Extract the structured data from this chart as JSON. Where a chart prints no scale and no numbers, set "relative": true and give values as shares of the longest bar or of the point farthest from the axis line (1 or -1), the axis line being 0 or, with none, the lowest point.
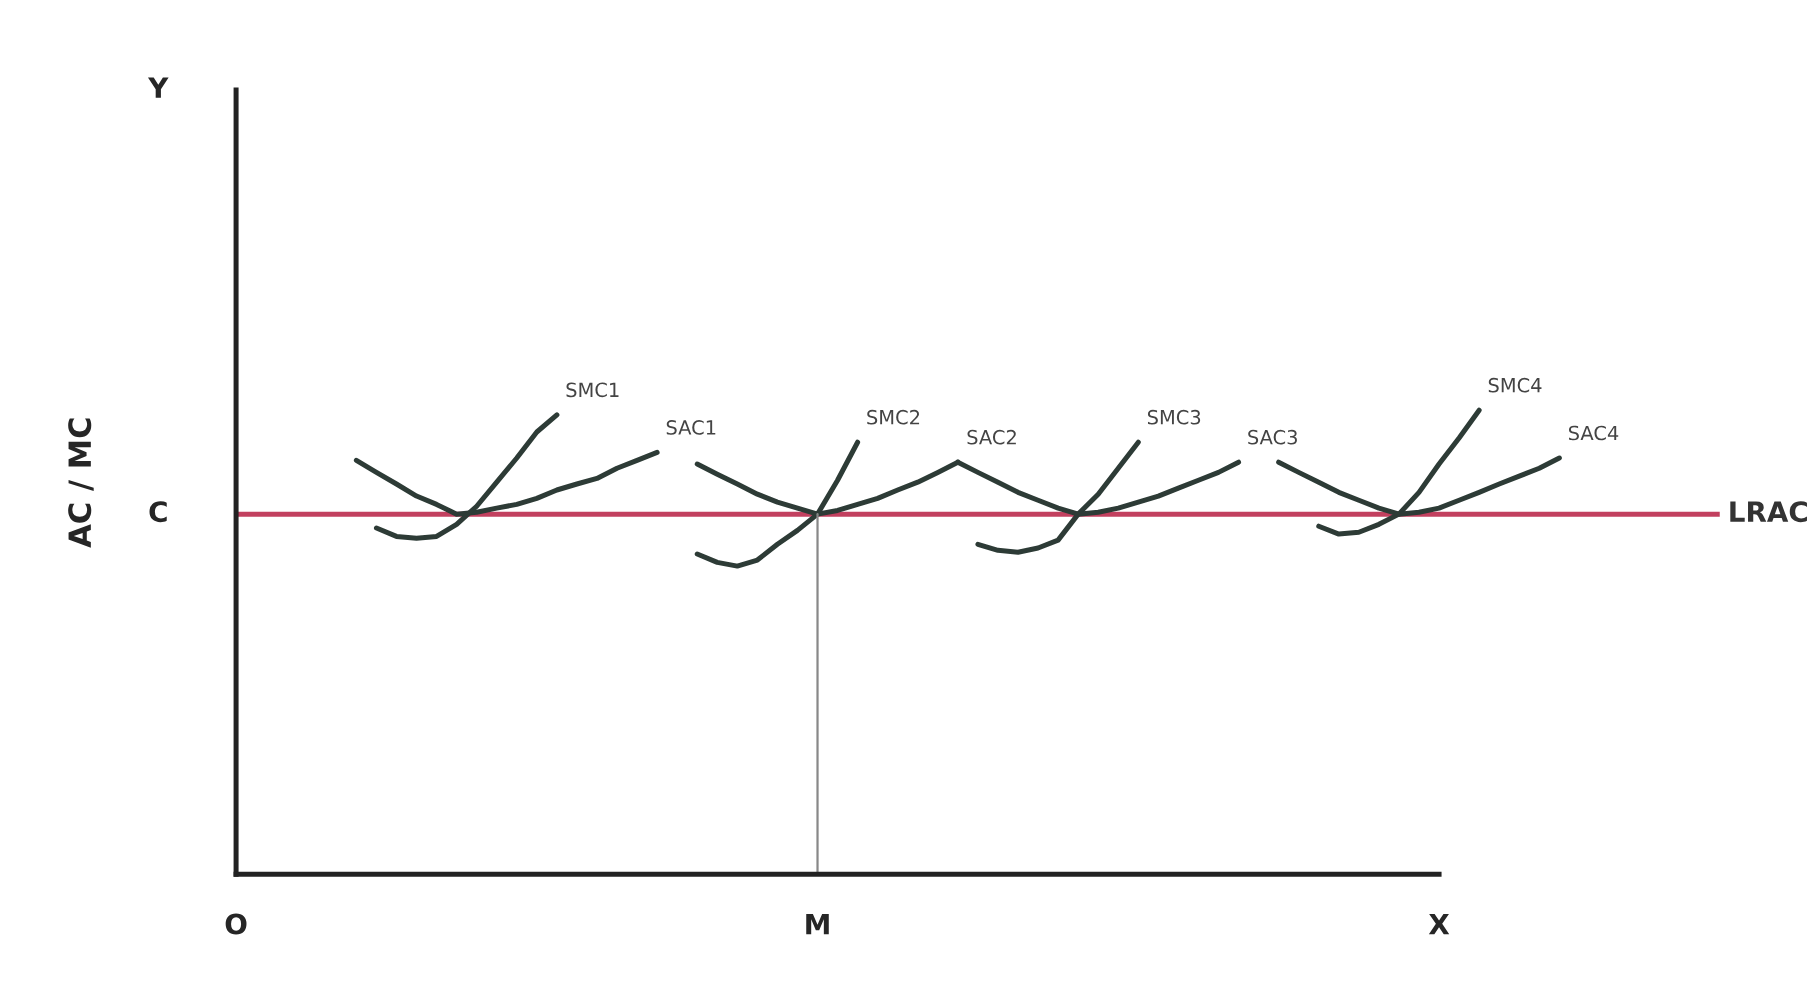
{
  "chart_data": {
    "type": "line",
    "relative": true,
    "ylabel": "AC / MC",
    "tick_labels": "x",
    "annotations": [
      "Y",
      "C"
    ],
    "categories": [
      "O",
      null,
      null,
      null,
      null,
      null,
      null,
      null,
      null,
      null,
      null,
      null,
      null,
      null,
      null,
      null,
      null,
      null,
      null,
      null,
      null,
      null,
      null,
      null,
      null,
      null,
      null,
      null,
      null,
      "M",
      null,
      null,
      null,
      null,
      null,
      null,
      null,
      null,
      null,
      null,
      null,
      null,
      null,
      null,
      null,
      null,
      null,
      null,
      null,
      null,
      null,
      null,
      null,
      null,
      null,
      null,
      null,
      null,
      null,
      null,
      "X",
      null,
      null,
      null,
      null,
      null,
      null,
      null,
      null,
      null,
      null,
      null,
      null,
      null,
      null
    ],
    "ref_lines": [
      {
        "axis": "x",
        "value": "M",
        "color": "#888888"
      }
    ],
    "series": [
      {
        "name": "LRAC",
        "color": "#c2405f",
        "values": [
          0.776,
          0.776,
          0.776,
          0.776,
          0.776,
          0.776,
          0.776,
          0.776,
          0.776,
          0.776,
          0.776,
          0.776,
          0.776,
          0.776,
          0.776,
          0.776,
          0.776,
          0.776,
          0.776,
          0.776,
          0.776,
          0.776,
          0.776,
          0.776,
          0.776,
          0.776,
          0.776,
          0.776,
          0.776,
          0.776,
          0.776,
          0.776,
          0.776,
          0.776,
          0.776,
          0.776,
          0.776,
          0.776,
          0.776,
          0.776,
          0.776,
          0.776,
          0.776,
          0.776,
          0.776,
          0.776,
          0.776,
          0.776,
          0.776,
          0.776,
          0.776,
          0.776,
          0.776,
          0.776,
          0.776,
          0.776,
          0.776,
          0.776,
          0.776,
          0.776,
          0.776,
          0.776,
          0.776,
          0.776,
          0.776,
          0.776,
          0.776,
          0.776,
          0.776,
          0.776,
          0.776,
          0.776,
          0.776,
          0.776,
          0.776
        ]
      },
      {
        "name": "SAC1",
        "color": "#2d3b36",
        "values": [
          null,
          null,
          null,
          null,
          null,
          null,
          0.892,
          0.866,
          0.841,
          0.815,
          0.797,
          0.776,
          0.78,
          0.789,
          0.797,
          0.81,
          0.828,
          0.841,
          0.853,
          0.875,
          0.892,
          0.909,
          null,
          null,
          null,
          null,
          null,
          null,
          null,
          null,
          null,
          null,
          null,
          null,
          null,
          null,
          null,
          null,
          null,
          null,
          null,
          null,
          null,
          null,
          null,
          null,
          null,
          null,
          null,
          null,
          null,
          null,
          null,
          null,
          null,
          null,
          null,
          null,
          null,
          null,
          null,
          null,
          null,
          null,
          null,
          null,
          null,
          null,
          null,
          null,
          null,
          null,
          null,
          null,
          null
        ]
      },
      {
        "name": "SMC1",
        "color": "#2d3b36",
        "values": [
          null,
          null,
          null,
          null,
          null,
          null,
          null,
          0.746,
          0.728,
          0.724,
          0.728,
          0.754,
          0.793,
          0.845,
          0.897,
          0.953,
          0.99,
          null,
          null,
          null,
          null,
          null,
          null,
          null,
          null,
          null,
          null,
          null,
          null,
          null,
          null,
          null,
          null,
          null,
          null,
          null,
          null,
          null,
          null,
          null,
          null,
          null,
          null,
          null,
          null,
          null,
          null,
          null,
          null,
          null,
          null,
          null,
          null,
          null,
          null,
          null,
          null,
          null,
          null,
          null,
          null,
          null,
          null,
          null,
          null,
          null,
          null,
          null,
          null,
          null,
          null,
          null,
          null,
          null,
          null
        ]
      },
      {
        "name": "SMC2",
        "color": "#2d3b36",
        "values": [
          null,
          null,
          null,
          null,
          null,
          null,
          null,
          null,
          null,
          null,
          null,
          null,
          null,
          null,
          null,
          null,
          null,
          null,
          null,
          null,
          null,
          null,
          null,
          0.69,
          0.672,
          0.664,
          0.677,
          0.711,
          0.741,
          0.776,
          0.849,
          0.931,
          null,
          null,
          null,
          null,
          null,
          null,
          null,
          null,
          null,
          null,
          null,
          null,
          null,
          null,
          null,
          null,
          null,
          null,
          null,
          null,
          null,
          null,
          null,
          null,
          null,
          null,
          null,
          null,
          null,
          null,
          null,
          null,
          null,
          null,
          null,
          null,
          null,
          null,
          null,
          null,
          null,
          null,
          null
        ]
      },
      {
        "name": "SAC2",
        "color": "#2d3b36",
        "values": [
          null,
          null,
          null,
          null,
          null,
          null,
          null,
          null,
          null,
          null,
          null,
          null,
          null,
          null,
          null,
          null,
          null,
          null,
          null,
          null,
          null,
          null,
          null,
          0.884,
          0.862,
          0.841,
          0.819,
          0.802,
          0.789,
          0.776,
          0.784,
          0.797,
          0.81,
          0.828,
          0.845,
          0.866,
          0.888,
          null,
          null,
          null,
          null,
          null,
          null,
          null,
          null,
          null,
          null,
          null,
          null,
          null,
          null,
          null,
          null,
          null,
          null,
          null,
          null,
          null,
          null,
          null,
          null,
          null,
          null,
          null,
          null,
          null,
          null,
          null,
          null,
          null,
          null,
          null,
          null,
          null,
          null
        ]
      },
      {
        "name": "SMC3",
        "color": "#2d3b36",
        "values": [
          null,
          null,
          null,
          null,
          null,
          null,
          null,
          null,
          null,
          null,
          null,
          null,
          null,
          null,
          null,
          null,
          null,
          null,
          null,
          null,
          null,
          null,
          null,
          null,
          null,
          null,
          null,
          null,
          null,
          null,
          null,
          null,
          null,
          null,
          null,
          null,
          null,
          0.711,
          0.698,
          0.694,
          0.703,
          0.72,
          0.776,
          0.819,
          0.875,
          0.931,
          null,
          null,
          null,
          null,
          null,
          null,
          null,
          null,
          null,
          null,
          null,
          null,
          null,
          null,
          null,
          null,
          null,
          null,
          null,
          null,
          null,
          null,
          null,
          null,
          null,
          null,
          null,
          null,
          null
        ]
      },
      {
        "name": "SAC3",
        "color": "#2d3b36",
        "values": [
          null,
          null,
          null,
          null,
          null,
          null,
          null,
          null,
          null,
          null,
          null,
          null,
          null,
          null,
          null,
          null,
          null,
          null,
          null,
          null,
          null,
          null,
          null,
          null,
          null,
          null,
          null,
          null,
          null,
          null,
          null,
          null,
          null,
          null,
          null,
          null,
          0.888,
          0.866,
          0.845,
          0.823,
          0.806,
          0.789,
          0.776,
          0.78,
          0.789,
          0.802,
          0.815,
          0.832,
          0.849,
          0.866,
          0.888,
          null,
          null,
          null,
          null,
          null,
          null,
          null,
          null,
          null,
          null,
          null,
          null,
          null,
          null,
          null,
          null,
          null,
          null,
          null,
          null,
          null,
          null,
          null,
          null
        ]
      },
      {
        "name": "SMC4",
        "color": "#2d3b36",
        "values": [
          null,
          null,
          null,
          null,
          null,
          null,
          null,
          null,
          null,
          null,
          null,
          null,
          null,
          null,
          null,
          null,
          null,
          null,
          null,
          null,
          null,
          null,
          null,
          null,
          null,
          null,
          null,
          null,
          null,
          null,
          null,
          null,
          null,
          null,
          null,
          null,
          null,
          null,
          null,
          null,
          null,
          null,
          null,
          null,
          null,
          null,
          null,
          null,
          null,
          null,
          null,
          null,
          null,
          null,
          0.75,
          0.733,
          0.737,
          0.754,
          0.776,
          0.823,
          0.884,
          0.94,
          1.0,
          null,
          null,
          null,
          null,
          null,
          null,
          null,
          null,
          null,
          null,
          null,
          null
        ]
      },
      {
        "name": "SAC4",
        "color": "#2d3b36",
        "values": [
          null,
          null,
          null,
          null,
          null,
          null,
          null,
          null,
          null,
          null,
          null,
          null,
          null,
          null,
          null,
          null,
          null,
          null,
          null,
          null,
          null,
          null,
          null,
          null,
          null,
          null,
          null,
          null,
          null,
          null,
          null,
          null,
          null,
          null,
          null,
          null,
          null,
          null,
          null,
          null,
          null,
          null,
          null,
          null,
          null,
          null,
          null,
          null,
          null,
          null,
          null,
          null,
          0.888,
          0.866,
          0.845,
          0.823,
          0.806,
          0.789,
          0.776,
          0.78,
          0.789,
          0.806,
          0.823,
          0.841,
          0.858,
          0.875,
          0.897,
          null,
          null,
          null,
          null,
          null,
          null,
          null,
          null
        ]
      }
    ]
  }
}
